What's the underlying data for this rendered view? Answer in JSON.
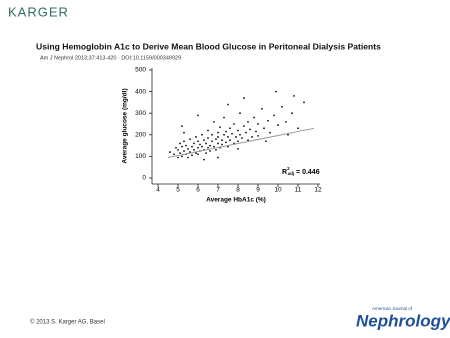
{
  "publisher": "KARGER",
  "title": "Using Hemoglobin A1c to Derive Mean Blood Glucose in Peritoneal Dialysis Patients",
  "citation": "Am J Nephrol 2013;37:413-420 · DOI:10.1159/000349929",
  "copyright": "© 2013 S. Karger AG, Basel",
  "journal": {
    "prefix": "American Journal of",
    "name": "Nephrology"
  },
  "chart_data": {
    "type": "scatter",
    "x_label": "Average HbA1c (%)",
    "y_label": "Average glucose (mg/dl)",
    "xlim": [
      4,
      12
    ],
    "ylim": [
      0,
      500
    ],
    "xticks": [
      4,
      5,
      6,
      7,
      8,
      9,
      10,
      11,
      12
    ],
    "yticks": [
      0,
      100,
      200,
      300,
      400,
      500
    ],
    "color": "#111111",
    "x": [
      4.8,
      4.9,
      5.0,
      5.0,
      5.1,
      5.1,
      5.2,
      5.2,
      5.3,
      5.3,
      5.4,
      5.4,
      5.5,
      5.5,
      5.6,
      5.6,
      5.7,
      5.7,
      5.8,
      5.8,
      5.9,
      5.9,
      6.0,
      6.0,
      6.0,
      6.1,
      6.1,
      6.2,
      6.2,
      6.3,
      6.3,
      6.4,
      6.4,
      6.5,
      6.5,
      6.5,
      6.6,
      6.6,
      6.7,
      6.7,
      6.8,
      6.8,
      6.9,
      6.9,
      7.0,
      7.0,
      7.0,
      7.1,
      7.1,
      7.2,
      7.2,
      7.3,
      7.3,
      7.4,
      7.4,
      7.5,
      7.5,
      7.6,
      7.6,
      7.7,
      7.8,
      7.8,
      7.9,
      8.0,
      8.0,
      8.1,
      8.1,
      8.2,
      8.3,
      8.4,
      8.5,
      8.5,
      8.6,
      8.7,
      8.8,
      8.9,
      9.0,
      9.0,
      9.2,
      9.3,
      9.5,
      9.6,
      9.8,
      10.0,
      10.2,
      10.4,
      10.7,
      11.0,
      11.3,
      5.3,
      4.6,
      6.0,
      5.2,
      7.5,
      8.3,
      9.9,
      10.8,
      7.0,
      8.0,
      6.3,
      9.4,
      10.5
    ],
    "y": [
      110,
      140,
      95,
      130,
      160,
      115,
      100,
      145,
      125,
      170,
      110,
      150,
      135,
      95,
      180,
      120,
      145,
      105,
      160,
      130,
      115,
      190,
      140,
      170,
      110,
      155,
      125,
      200,
      145,
      130,
      175,
      160,
      115,
      185,
      140,
      220,
      150,
      125,
      170,
      200,
      145,
      260,
      180,
      130,
      160,
      210,
      190,
      140,
      235,
      175,
      155,
      200,
      280,
      165,
      215,
      190,
      145,
      230,
      175,
      205,
      160,
      250,
      190,
      220,
      170,
      300,
      200,
      185,
      240,
      210,
      175,
      260,
      225,
      190,
      280,
      215,
      250,
      195,
      320,
      230,
      265,
      210,
      290,
      245,
      330,
      260,
      300,
      230,
      350,
      210,
      120,
      290,
      240,
      340,
      370,
      400,
      380,
      95,
      135,
      85,
      170,
      200
    ],
    "trend_line": {
      "color": "#999999",
      "x": [
        4.5,
        11.8
      ],
      "y": [
        95,
        230
      ]
    },
    "annotation": {
      "base": "R",
      "sup": "2",
      "sub": "adj",
      "text": " = 0.446"
    }
  }
}
